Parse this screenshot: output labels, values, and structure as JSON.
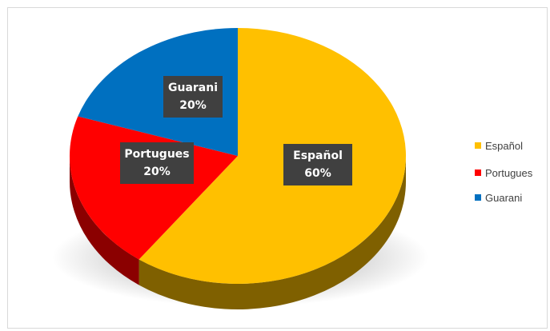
{
  "chart_data": {
    "type": "pie",
    "title": "",
    "style": "3d",
    "legend_position": "right",
    "slices": [
      {
        "name": "Español",
        "value": 60,
        "label": "60%",
        "color": "#FFC000",
        "side_color": "#7F6000"
      },
      {
        "name": "Portugues",
        "value": 20,
        "label": "20%",
        "color": "#FF0000",
        "side_color": "#8B0000"
      },
      {
        "name": "Guarani",
        "value": 20,
        "label": "20%",
        "color": "#0070C0",
        "side_color": "#003A66"
      }
    ]
  }
}
